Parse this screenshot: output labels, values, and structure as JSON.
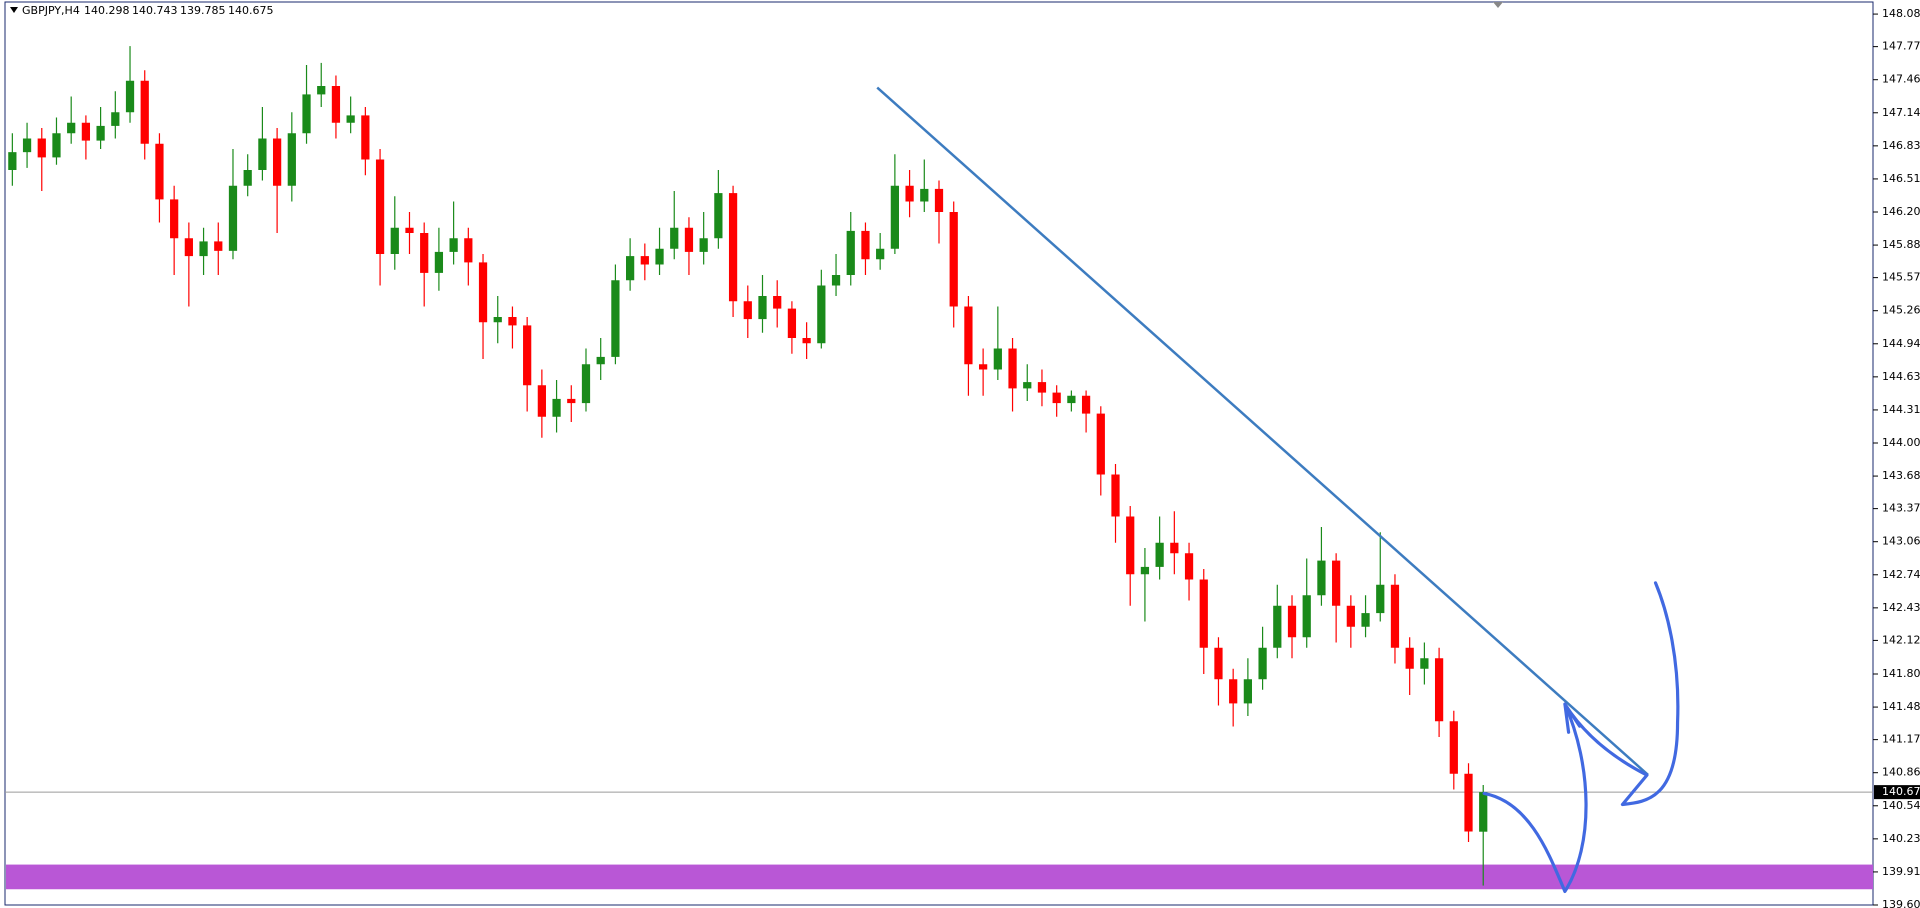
{
  "chart_data": {
    "type": "candlestick",
    "title": "GBPJPY,H4",
    "series": [
      {
        "up_color": "#1a8a1a",
        "down_color": "#ff0000",
        "open": [
          146.6,
          146.77,
          146.9,
          146.72,
          146.95,
          147.05,
          146.88,
          147.02,
          147.15,
          147.45,
          146.85,
          146.32,
          145.95,
          145.78,
          145.92,
          145.83,
          146.45,
          146.6,
          146.9,
          146.45,
          146.95,
          147.32,
          147.4,
          147.05,
          147.12,
          146.7,
          145.8,
          146.05,
          146.0,
          145.62,
          145.82,
          145.95,
          145.72,
          145.15,
          145.2,
          145.12,
          144.55,
          144.25,
          144.42,
          144.38,
          144.75,
          144.82,
          145.55,
          145.78,
          145.7,
          145.85,
          146.05,
          145.82,
          145.95,
          146.38,
          145.35,
          145.18,
          145.4,
          145.28,
          145.0,
          144.95,
          145.5,
          145.6,
          146.02,
          145.75,
          145.85,
          146.45,
          146.3,
          146.42,
          146.2,
          145.3,
          144.75,
          144.7,
          144.9,
          144.52,
          144.58,
          144.48,
          144.38,
          144.45,
          144.28,
          143.7,
          143.3,
          142.75,
          142.82,
          143.05,
          142.95,
          142.7,
          142.05,
          141.75,
          141.52,
          141.75,
          142.05,
          142.45,
          142.15,
          142.55,
          142.88,
          142.45,
          142.25,
          142.38,
          142.65,
          142.05,
          141.85,
          141.95,
          141.35,
          140.85,
          140.298
        ],
        "high": [
          146.95,
          147.05,
          147.0,
          147.1,
          147.3,
          147.12,
          147.2,
          147.35,
          147.78,
          147.55,
          146.95,
          146.45,
          146.1,
          146.05,
          146.1,
          146.8,
          146.75,
          147.2,
          147.0,
          147.15,
          147.6,
          147.62,
          147.5,
          147.3,
          147.2,
          146.8,
          146.35,
          146.2,
          146.1,
          146.05,
          146.3,
          146.05,
          145.8,
          145.4,
          145.3,
          145.2,
          144.7,
          144.6,
          144.55,
          144.9,
          145.0,
          145.7,
          145.95,
          145.9,
          146.05,
          146.4,
          146.15,
          146.2,
          146.6,
          146.45,
          145.5,
          145.6,
          145.55,
          145.35,
          145.15,
          145.65,
          145.8,
          146.2,
          146.1,
          146.0,
          146.75,
          146.6,
          146.7,
          146.5,
          146.3,
          145.4,
          144.9,
          145.3,
          145.0,
          144.75,
          144.7,
          144.55,
          144.5,
          144.5,
          144.35,
          143.8,
          143.4,
          143.0,
          143.3,
          143.35,
          143.05,
          142.8,
          142.15,
          141.85,
          141.95,
          142.25,
          142.65,
          142.55,
          142.9,
          143.2,
          142.95,
          142.55,
          142.55,
          143.15,
          142.75,
          142.15,
          142.1,
          142.05,
          141.45,
          140.95,
          140.743
        ],
        "low": [
          146.45,
          146.62,
          146.4,
          146.65,
          146.85,
          146.7,
          146.8,
          146.9,
          147.05,
          146.7,
          146.1,
          145.6,
          145.3,
          145.6,
          145.6,
          145.75,
          146.35,
          146.5,
          146.0,
          146.3,
          146.85,
          147.2,
          146.9,
          146.95,
          146.55,
          145.5,
          145.65,
          145.8,
          145.3,
          145.45,
          145.7,
          145.5,
          144.8,
          144.95,
          144.9,
          144.3,
          144.05,
          144.1,
          144.2,
          144.3,
          144.6,
          144.75,
          145.45,
          145.55,
          145.6,
          145.75,
          145.6,
          145.7,
          145.85,
          145.2,
          145.0,
          145.05,
          145.1,
          144.85,
          144.8,
          144.9,
          145.4,
          145.5,
          145.6,
          145.65,
          145.8,
          146.15,
          146.2,
          145.9,
          145.1,
          144.45,
          144.45,
          144.6,
          144.3,
          144.4,
          144.35,
          144.25,
          144.3,
          144.1,
          143.5,
          143.05,
          142.45,
          142.3,
          142.7,
          142.75,
          142.5,
          141.8,
          141.5,
          141.3,
          141.4,
          141.65,
          141.95,
          141.95,
          142.05,
          142.45,
          142.1,
          142.05,
          142.15,
          142.3,
          141.9,
          141.6,
          141.7,
          141.2,
          140.7,
          140.2,
          139.785
        ],
        "close": [
          146.77,
          146.9,
          146.72,
          146.95,
          147.05,
          146.88,
          147.02,
          147.15,
          147.45,
          146.85,
          146.32,
          145.95,
          145.78,
          145.92,
          145.83,
          146.45,
          146.6,
          146.9,
          146.45,
          146.95,
          147.32,
          147.4,
          147.05,
          147.12,
          146.7,
          145.8,
          146.05,
          146.0,
          145.62,
          145.82,
          145.95,
          145.72,
          145.15,
          145.2,
          145.12,
          144.55,
          144.25,
          144.42,
          144.38,
          144.75,
          144.82,
          145.55,
          145.78,
          145.7,
          145.85,
          146.05,
          145.82,
          145.95,
          146.38,
          145.35,
          145.18,
          145.4,
          145.28,
          145.0,
          144.95,
          145.5,
          145.6,
          146.02,
          145.75,
          145.85,
          146.45,
          146.3,
          146.42,
          146.2,
          145.3,
          144.75,
          144.7,
          144.9,
          144.52,
          144.58,
          144.48,
          144.38,
          144.45,
          144.28,
          143.7,
          143.3,
          142.75,
          142.82,
          143.05,
          142.95,
          142.7,
          142.05,
          141.75,
          141.52,
          141.75,
          142.05,
          142.45,
          142.15,
          142.55,
          142.88,
          142.45,
          142.25,
          142.38,
          142.65,
          142.05,
          141.85,
          141.95,
          141.35,
          140.85,
          140.3,
          140.675
        ]
      }
    ],
    "xlim": [
      -0.5,
      126.5
    ],
    "ylim": [
      139.6,
      148.2
    ],
    "y_axis_side": "right",
    "grid": false,
    "yticks": [
      {
        "value": 148.085,
        "label": "148.085"
      },
      {
        "value": 147.775,
        "label": "147.775"
      },
      {
        "value": 147.46,
        "label": "147.460"
      },
      {
        "value": 147.145,
        "label": "147.145"
      },
      {
        "value": 146.83,
        "label": "146.830"
      },
      {
        "value": 146.515,
        "label": "146.515"
      },
      {
        "value": 146.2,
        "label": "146.200"
      },
      {
        "value": 145.885,
        "label": "145.885"
      },
      {
        "value": 145.575,
        "label": "145.575"
      },
      {
        "value": 145.26,
        "label": "145.260"
      },
      {
        "value": 144.945,
        "label": "144.945"
      },
      {
        "value": 144.63,
        "label": "144.630"
      },
      {
        "value": 144.315,
        "label": "144.315"
      },
      {
        "value": 144.0,
        "label": "144.000"
      },
      {
        "value": 143.685,
        "label": "143.685"
      },
      {
        "value": 143.375,
        "label": "143.375"
      },
      {
        "value": 143.06,
        "label": "143.060"
      },
      {
        "value": 142.745,
        "label": "142.745"
      },
      {
        "value": 142.43,
        "label": "142.430"
      },
      {
        "value": 142.12,
        "label": "142.120"
      },
      {
        "value": 141.8,
        "label": "141.800"
      },
      {
        "value": 141.485,
        "label": "141.485"
      },
      {
        "value": 141.175,
        "label": "141.175"
      },
      {
        "value": 140.86,
        "label": "140.860"
      },
      {
        "value": 140.545,
        "label": "140.545"
      },
      {
        "value": 140.23,
        "label": "140.230"
      },
      {
        "value": 139.915,
        "label": "139.915"
      },
      {
        "value": 139.6,
        "label": "139.600"
      }
    ],
    "current_price": {
      "value": 140.675,
      "label": "140.675",
      "color": "#000"
    },
    "trendline": {
      "x": [
        58.8,
        111.2
      ],
      "y": [
        147.385,
        140.84
      ],
      "color": "#3d7cc0"
    },
    "zone": {
      "y": [
        139.75,
        139.985
      ],
      "color": "#b957d6"
    }
  }
}
